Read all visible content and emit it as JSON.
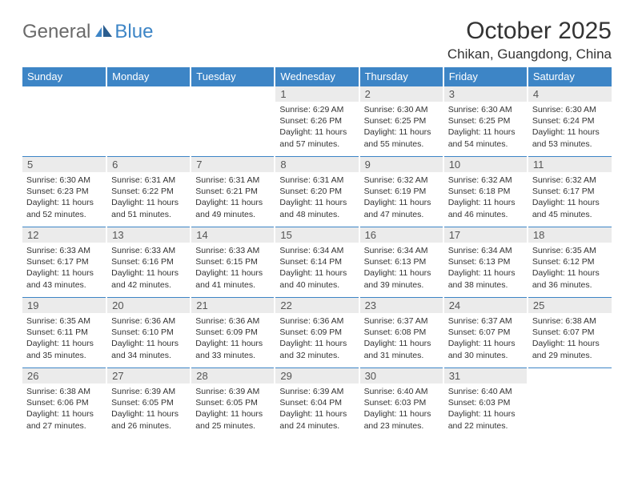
{
  "brand": {
    "part1": "General",
    "part2": "Blue"
  },
  "title": "October 2025",
  "location": "Chikan, Guangdong, China",
  "colors": {
    "header_bg": "#3d85c6",
    "header_text": "#ffffff",
    "daynum_bg": "#ebebeb",
    "row_border": "#3d85c6"
  },
  "weekdays": [
    "Sunday",
    "Monday",
    "Tuesday",
    "Wednesday",
    "Thursday",
    "Friday",
    "Saturday"
  ],
  "weeks": [
    [
      {
        "n": "",
        "sr": "",
        "ss": "",
        "dl": ""
      },
      {
        "n": "",
        "sr": "",
        "ss": "",
        "dl": ""
      },
      {
        "n": "",
        "sr": "",
        "ss": "",
        "dl": ""
      },
      {
        "n": "1",
        "sr": "Sunrise: 6:29 AM",
        "ss": "Sunset: 6:26 PM",
        "dl": "Daylight: 11 hours and 57 minutes."
      },
      {
        "n": "2",
        "sr": "Sunrise: 6:30 AM",
        "ss": "Sunset: 6:25 PM",
        "dl": "Daylight: 11 hours and 55 minutes."
      },
      {
        "n": "3",
        "sr": "Sunrise: 6:30 AM",
        "ss": "Sunset: 6:25 PM",
        "dl": "Daylight: 11 hours and 54 minutes."
      },
      {
        "n": "4",
        "sr": "Sunrise: 6:30 AM",
        "ss": "Sunset: 6:24 PM",
        "dl": "Daylight: 11 hours and 53 minutes."
      }
    ],
    [
      {
        "n": "5",
        "sr": "Sunrise: 6:30 AM",
        "ss": "Sunset: 6:23 PM",
        "dl": "Daylight: 11 hours and 52 minutes."
      },
      {
        "n": "6",
        "sr": "Sunrise: 6:31 AM",
        "ss": "Sunset: 6:22 PM",
        "dl": "Daylight: 11 hours and 51 minutes."
      },
      {
        "n": "7",
        "sr": "Sunrise: 6:31 AM",
        "ss": "Sunset: 6:21 PM",
        "dl": "Daylight: 11 hours and 49 minutes."
      },
      {
        "n": "8",
        "sr": "Sunrise: 6:31 AM",
        "ss": "Sunset: 6:20 PM",
        "dl": "Daylight: 11 hours and 48 minutes."
      },
      {
        "n": "9",
        "sr": "Sunrise: 6:32 AM",
        "ss": "Sunset: 6:19 PM",
        "dl": "Daylight: 11 hours and 47 minutes."
      },
      {
        "n": "10",
        "sr": "Sunrise: 6:32 AM",
        "ss": "Sunset: 6:18 PM",
        "dl": "Daylight: 11 hours and 46 minutes."
      },
      {
        "n": "11",
        "sr": "Sunrise: 6:32 AM",
        "ss": "Sunset: 6:17 PM",
        "dl": "Daylight: 11 hours and 45 minutes."
      }
    ],
    [
      {
        "n": "12",
        "sr": "Sunrise: 6:33 AM",
        "ss": "Sunset: 6:17 PM",
        "dl": "Daylight: 11 hours and 43 minutes."
      },
      {
        "n": "13",
        "sr": "Sunrise: 6:33 AM",
        "ss": "Sunset: 6:16 PM",
        "dl": "Daylight: 11 hours and 42 minutes."
      },
      {
        "n": "14",
        "sr": "Sunrise: 6:33 AM",
        "ss": "Sunset: 6:15 PM",
        "dl": "Daylight: 11 hours and 41 minutes."
      },
      {
        "n": "15",
        "sr": "Sunrise: 6:34 AM",
        "ss": "Sunset: 6:14 PM",
        "dl": "Daylight: 11 hours and 40 minutes."
      },
      {
        "n": "16",
        "sr": "Sunrise: 6:34 AM",
        "ss": "Sunset: 6:13 PM",
        "dl": "Daylight: 11 hours and 39 minutes."
      },
      {
        "n": "17",
        "sr": "Sunrise: 6:34 AM",
        "ss": "Sunset: 6:13 PM",
        "dl": "Daylight: 11 hours and 38 minutes."
      },
      {
        "n": "18",
        "sr": "Sunrise: 6:35 AM",
        "ss": "Sunset: 6:12 PM",
        "dl": "Daylight: 11 hours and 36 minutes."
      }
    ],
    [
      {
        "n": "19",
        "sr": "Sunrise: 6:35 AM",
        "ss": "Sunset: 6:11 PM",
        "dl": "Daylight: 11 hours and 35 minutes."
      },
      {
        "n": "20",
        "sr": "Sunrise: 6:36 AM",
        "ss": "Sunset: 6:10 PM",
        "dl": "Daylight: 11 hours and 34 minutes."
      },
      {
        "n": "21",
        "sr": "Sunrise: 6:36 AM",
        "ss": "Sunset: 6:09 PM",
        "dl": "Daylight: 11 hours and 33 minutes."
      },
      {
        "n": "22",
        "sr": "Sunrise: 6:36 AM",
        "ss": "Sunset: 6:09 PM",
        "dl": "Daylight: 11 hours and 32 minutes."
      },
      {
        "n": "23",
        "sr": "Sunrise: 6:37 AM",
        "ss": "Sunset: 6:08 PM",
        "dl": "Daylight: 11 hours and 31 minutes."
      },
      {
        "n": "24",
        "sr": "Sunrise: 6:37 AM",
        "ss": "Sunset: 6:07 PM",
        "dl": "Daylight: 11 hours and 30 minutes."
      },
      {
        "n": "25",
        "sr": "Sunrise: 6:38 AM",
        "ss": "Sunset: 6:07 PM",
        "dl": "Daylight: 11 hours and 29 minutes."
      }
    ],
    [
      {
        "n": "26",
        "sr": "Sunrise: 6:38 AM",
        "ss": "Sunset: 6:06 PM",
        "dl": "Daylight: 11 hours and 27 minutes."
      },
      {
        "n": "27",
        "sr": "Sunrise: 6:39 AM",
        "ss": "Sunset: 6:05 PM",
        "dl": "Daylight: 11 hours and 26 minutes."
      },
      {
        "n": "28",
        "sr": "Sunrise: 6:39 AM",
        "ss": "Sunset: 6:05 PM",
        "dl": "Daylight: 11 hours and 25 minutes."
      },
      {
        "n": "29",
        "sr": "Sunrise: 6:39 AM",
        "ss": "Sunset: 6:04 PM",
        "dl": "Daylight: 11 hours and 24 minutes."
      },
      {
        "n": "30",
        "sr": "Sunrise: 6:40 AM",
        "ss": "Sunset: 6:03 PM",
        "dl": "Daylight: 11 hours and 23 minutes."
      },
      {
        "n": "31",
        "sr": "Sunrise: 6:40 AM",
        "ss": "Sunset: 6:03 PM",
        "dl": "Daylight: 11 hours and 22 minutes."
      },
      {
        "n": "",
        "sr": "",
        "ss": "",
        "dl": ""
      }
    ]
  ]
}
